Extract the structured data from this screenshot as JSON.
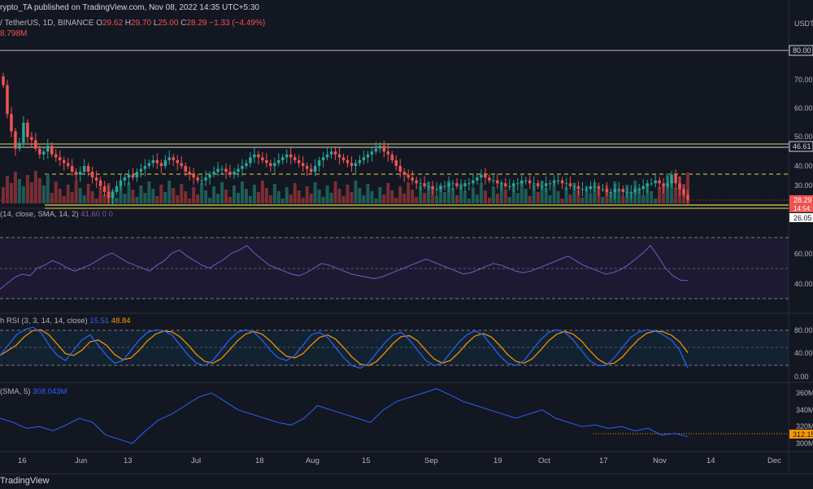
{
  "header": {
    "publisher": "rypto_TA published on TradingView.com, Nov 08, 2022 14:35 UTC+5:30"
  },
  "symbol": {
    "name": "/ TetherUS, 1D, BINANCE",
    "o_label": "O",
    "o": "29.62",
    "h_label": "H",
    "h": "29.70",
    "l_label": "L",
    "l": "25.00",
    "c_label": "C",
    "c": "28.29",
    "change": "−1.33 (−4.49%)",
    "volume": "8.798M"
  },
  "currency": "USDT",
  "colors": {
    "up": "#26a69a",
    "down": "#ef5350",
    "rsi": "#7e57c2",
    "stoch_k": "#2962ff",
    "stoch_d": "#ff9800",
    "level": "#e6d64a"
  },
  "panels": {
    "rsi": {
      "label": "(14, close, SMA, 14, 2)",
      "values": "41.60  0  0"
    },
    "stoch": {
      "label": "h RSI (3, 3, 14, 14, close)",
      "k": "15.51",
      "d": "48.84"
    },
    "vol": {
      "label": "(SMA, 5)",
      "value": "308.043M"
    }
  },
  "price_axis": [
    "80.00",
    "70.00",
    "60.00",
    "50.00",
    "40.00",
    "30.00"
  ],
  "price_tags": {
    "level_high": "80.00",
    "level_mid": "46.61",
    "last": "28.29",
    "countdown": "14:54:",
    "support": "26.05"
  },
  "rsi_axis": [
    "60.00",
    "40.00"
  ],
  "stoch_axis": [
    "80.00",
    "40.00",
    "0.00"
  ],
  "vol_axis": [
    "360M",
    "340M",
    "320M",
    "300M"
  ],
  "vol_tag": "312.15",
  "time_axis": [
    "16",
    "Jun",
    "13",
    "Jul",
    "18",
    "Aug",
    "15",
    "Sep",
    "19",
    "Oct",
    "17",
    "Nov",
    "14",
    "Dec"
  ],
  "footer": {
    "brand": "TradingView"
  },
  "chart_data": {
    "type": "candlestick",
    "x_start": "May 16, 2022",
    "y_unit": "USDT",
    "ylim": [
      20,
      85
    ],
    "horizontal_levels": [
      80.0,
      47.5,
      46.61,
      37.0,
      26.6,
      26.05
    ],
    "ohlc_approx_close": [
      68,
      58,
      52,
      46,
      48,
      55,
      50,
      49,
      46,
      44,
      45,
      47,
      44,
      43,
      42,
      41,
      40,
      38,
      37,
      38,
      40,
      38,
      36,
      35,
      33,
      31,
      29,
      31,
      33,
      35,
      36,
      37,
      36,
      38,
      39,
      40,
      41,
      42,
      41,
      40,
      42,
      43,
      42,
      41,
      40,
      38,
      37,
      36,
      35,
      35,
      36,
      37,
      38,
      39,
      39,
      38,
      37,
      38,
      39,
      40,
      41,
      43,
      44,
      43,
      42,
      41,
      40,
      41,
      42,
      43,
      44,
      43,
      42,
      41,
      40,
      39,
      38,
      40,
      42,
      43,
      44,
      45,
      44,
      43,
      42,
      41,
      40,
      41,
      42,
      43,
      44,
      45,
      46,
      47,
      45,
      44,
      42,
      40,
      38,
      37,
      36,
      35,
      34,
      34,
      33,
      33,
      32,
      32,
      33,
      33,
      34,
      34,
      33,
      33,
      34,
      34,
      35,
      36,
      37,
      36,
      35,
      35,
      34,
      34,
      33,
      33,
      34,
      34,
      35,
      35,
      34,
      34,
      33,
      33,
      34,
      34,
      35,
      35,
      34,
      34,
      33,
      33,
      32,
      32,
      32,
      33,
      33,
      32,
      32,
      31,
      31,
      32,
      32,
      31,
      31,
      31,
      32,
      32,
      33,
      34,
      34,
      35,
      34,
      33,
      34,
      37,
      34,
      32,
      30,
      28.29
    ],
    "rsi_approx": [
      36,
      40,
      44,
      46,
      45,
      50,
      52,
      55,
      53,
      50,
      48,
      50,
      52,
      55,
      58,
      60,
      57,
      54,
      52,
      50,
      48,
      52,
      55,
      60,
      62,
      58,
      55,
      52,
      50,
      53,
      56,
      60,
      62,
      65,
      60,
      56,
      52,
      50,
      48,
      46,
      45,
      47,
      50,
      53,
      52,
      50,
      48,
      46,
      45,
      44,
      43,
      44,
      46,
      48,
      50,
      52,
      54,
      56,
      54,
      52,
      50,
      48,
      46,
      47,
      49,
      51,
      53,
      52,
      50,
      48,
      47,
      48,
      50,
      52,
      54,
      56,
      58,
      55,
      52,
      50,
      48,
      46,
      47,
      49,
      52,
      56,
      60,
      65,
      58,
      50,
      45,
      42,
      41.6
    ],
    "stoch_k_approx": [
      40,
      60,
      80,
      90,
      95,
      85,
      60,
      40,
      30,
      50,
      70,
      80,
      60,
      40,
      25,
      30,
      50,
      70,
      85,
      90,
      88,
      80,
      60,
      40,
      25,
      20,
      30,
      50,
      70,
      85,
      90,
      85,
      70,
      50,
      35,
      30,
      40,
      60,
      80,
      85,
      75,
      55,
      35,
      20,
      15,
      25,
      45,
      65,
      80,
      85,
      70,
      50,
      30,
      20,
      25,
      45,
      65,
      80,
      88,
      80,
      60,
      40,
      25,
      20,
      30,
      50,
      70,
      85,
      90,
      85,
      70,
      50,
      30,
      20,
      20,
      35,
      55,
      75,
      85,
      90,
      88,
      80,
      70,
      50,
      15.51
    ],
    "volume_sma_approx": [
      330,
      325,
      318,
      320,
      315,
      322,
      330,
      325,
      310,
      305,
      300,
      315,
      328,
      335,
      345,
      355,
      360,
      350,
      340,
      335,
      330,
      325,
      322,
      330,
      345,
      340,
      335,
      330,
      325,
      340,
      350,
      355,
      360,
      365,
      358,
      350,
      345,
      340,
      335,
      330,
      335,
      340,
      330,
      325,
      320,
      322,
      318,
      320,
      315,
      318,
      310,
      312,
      308.043
    ]
  }
}
